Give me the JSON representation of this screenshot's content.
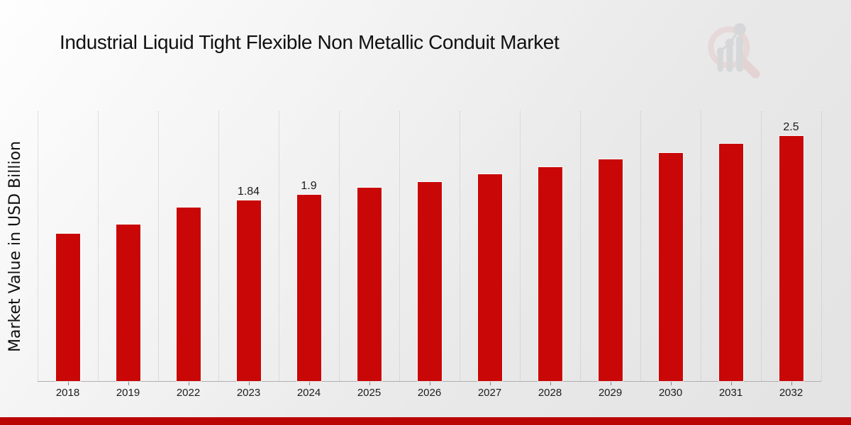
{
  "chart_data": {
    "type": "bar",
    "title": "Industrial Liquid Tight Flexible Non Metallic Conduit Market",
    "ylabel": "Market Value in USD Billion",
    "xlabel": "",
    "categories": [
      "2018",
      "2019",
      "2022",
      "2023",
      "2024",
      "2025",
      "2026",
      "2027",
      "2028",
      "2029",
      "2030",
      "2031",
      "2032"
    ],
    "values": [
      1.5,
      1.6,
      1.77,
      1.84,
      1.9,
      1.97,
      2.03,
      2.11,
      2.18,
      2.26,
      2.33,
      2.42,
      2.5
    ],
    "bar_labels": [
      "",
      "",
      "",
      "1.84",
      "1.9",
      "",
      "",
      "",
      "",
      "",
      "",
      "",
      "2.5"
    ],
    "ylim": [
      0,
      2.76
    ],
    "grid": "vertical-dotted",
    "legend": "none",
    "bar_color": "#c90707"
  },
  "branding": {
    "logo_name": "market-research-magnifier-chart-logo",
    "footer_bar_color": "#bb0505"
  }
}
